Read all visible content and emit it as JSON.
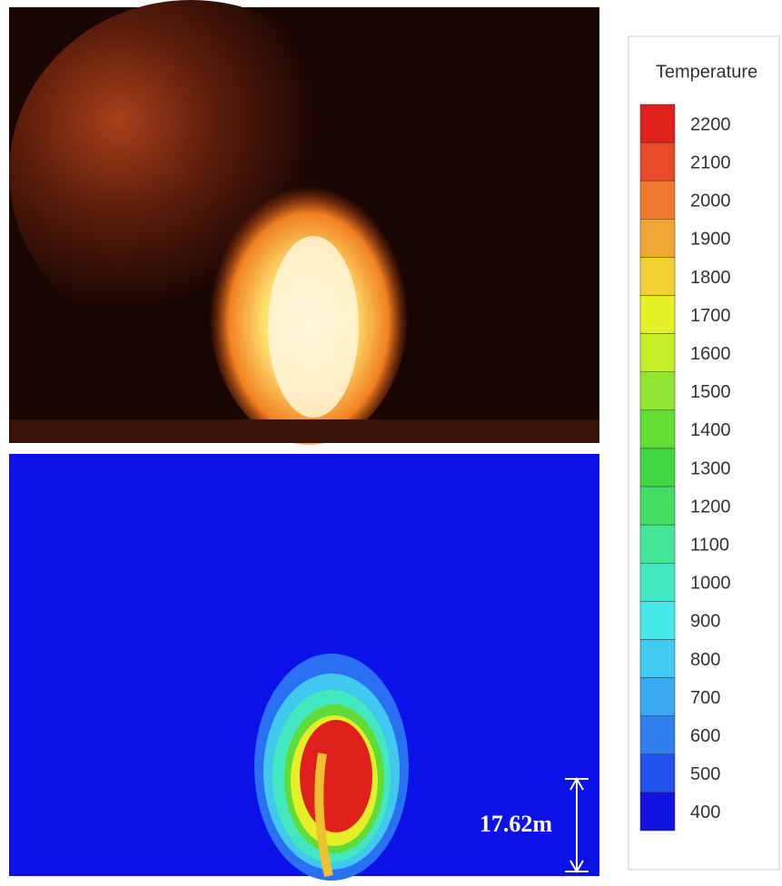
{
  "legend": {
    "title": "Temperature",
    "levels": [
      {
        "label": 2200,
        "color": "#e0201c"
      },
      {
        "label": 2100,
        "color": "#e84a2a"
      },
      {
        "label": 2000,
        "color": "#ef7a30"
      },
      {
        "label": 1900,
        "color": "#f0a634"
      },
      {
        "label": 1800,
        "color": "#f2d232"
      },
      {
        "label": 1700,
        "color": "#e6f026"
      },
      {
        "label": 1600,
        "color": "#c4ee28"
      },
      {
        "label": 1500,
        "color": "#92e632"
      },
      {
        "label": 1400,
        "color": "#62de34"
      },
      {
        "label": 1300,
        "color": "#42d842"
      },
      {
        "label": 1200,
        "color": "#42de66"
      },
      {
        "label": 1100,
        "color": "#42e694"
      },
      {
        "label": 1000,
        "color": "#42e8c2"
      },
      {
        "label": 900,
        "color": "#44e8e8"
      },
      {
        "label": 800,
        "color": "#40ccf2"
      },
      {
        "label": 700,
        "color": "#3aa8f2"
      },
      {
        "label": 600,
        "color": "#3080f0"
      },
      {
        "label": 500,
        "color": "#2252ee"
      },
      {
        "label": 400,
        "color": "#1212e0"
      }
    ]
  },
  "annotation": "17.62m"
}
